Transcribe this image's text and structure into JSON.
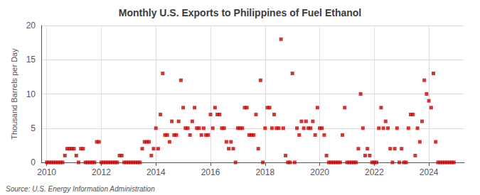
{
  "chart_data": {
    "type": "scatter",
    "title": "Monthly U.S. Exports to Philippines of Fuel Ethanol",
    "ylabel": "Thousand Barrels per Day",
    "annotations": [
      "Source: U.S. Energy Information Administration"
    ],
    "color": "#cc0000",
    "marker": "square",
    "grid": true,
    "xlim": [
      2009.8,
      2025.3
    ],
    "xticks": [
      2010,
      2012,
      2014,
      2016,
      2018,
      2020,
      2022,
      2024
    ],
    "ylim": [
      0,
      20
    ],
    "yticks": [
      0,
      5,
      10,
      15,
      20
    ],
    "x": [
      2010,
      2010.0833333333,
      2010.1666666667,
      2010.25,
      2010.3333333333,
      2010.4166666667,
      2010.5,
      2010.5833333333,
      2010.6666666667,
      2010.75,
      2010.8333333333,
      2010.9166666667,
      2011,
      2011.0833333333,
      2011.1666666667,
      2011.25,
      2011.3333333333,
      2011.4166666667,
      2011.5,
      2011.5833333333,
      2011.6666666667,
      2011.75,
      2011.8333333333,
      2011.9166666667,
      2012,
      2012.0833333333,
      2012.1666666667,
      2012.25,
      2012.3333333333,
      2012.4166666667,
      2012.5,
      2012.5833333333,
      2012.6666666667,
      2012.75,
      2012.8333333333,
      2012.9166666667,
      2013,
      2013.0833333333,
      2013.1666666667,
      2013.25,
      2013.3333333333,
      2013.4166666667,
      2013.5,
      2013.5833333333,
      2013.6666666667,
      2013.75,
      2013.8333333333,
      2013.9166666667,
      2014,
      2014.0833333333,
      2014.1666666667,
      2014.25,
      2014.3333333333,
      2014.4166666667,
      2014.5,
      2014.5833333333,
      2014.6666666667,
      2014.75,
      2014.8333333333,
      2014.9166666667,
      2015,
      2015.0833333333,
      2015.1666666667,
      2015.25,
      2015.3333333333,
      2015.4166666667,
      2015.5,
      2015.5833333333,
      2015.6666666667,
      2015.75,
      2015.8333333333,
      2015.9166666667,
      2016,
      2016.0833333333,
      2016.1666666667,
      2016.25,
      2016.3333333333,
      2016.4166666667,
      2016.5,
      2016.5833333333,
      2016.6666666667,
      2016.75,
      2016.8333333333,
      2016.9166666667,
      2017,
      2017.0833333333,
      2017.1666666667,
      2017.25,
      2017.3333333333,
      2017.4166666667,
      2017.5,
      2017.5833333333,
      2017.6666666667,
      2017.75,
      2017.8333333333,
      2017.9166666667,
      2018,
      2018.0833333333,
      2018.1666666667,
      2018.25,
      2018.3333333333,
      2018.4166666667,
      2018.5,
      2018.5833333333,
      2018.6666666667,
      2018.75,
      2018.8333333333,
      2018.9166666667,
      2019,
      2019.0833333333,
      2019.1666666667,
      2019.25,
      2019.3333333333,
      2019.4166666667,
      2019.5,
      2019.5833333333,
      2019.6666666667,
      2019.75,
      2019.8333333333,
      2019.9166666667,
      2020,
      2020.0833333333,
      2020.1666666667,
      2020.25,
      2020.3333333333,
      2020.4166666667,
      2020.5,
      2020.5833333333,
      2020.6666666667,
      2020.75,
      2020.8333333333,
      2020.9166666667,
      2021,
      2021.0833333333,
      2021.1666666667,
      2021.25,
      2021.3333333333,
      2021.4166666667,
      2021.5,
      2021.5833333333,
      2021.6666666667,
      2021.75,
      2021.8333333333,
      2021.9166666667,
      2022,
      2022.0833333333,
      2022.1666666667,
      2022.25,
      2022.3333333333,
      2022.4166666667,
      2022.5,
      2022.5833333333,
      2022.6666666667,
      2022.75,
      2022.8333333333,
      2022.9166666667,
      2023,
      2023.0833333333,
      2023.1666666667,
      2023.25,
      2023.3333333333,
      2023.4166666667,
      2023.5,
      2023.5833333333,
      2023.6666666667,
      2023.75,
      2023.8333333333,
      2023.9166666667,
      2024,
      2024.0833333333,
      2024.1666666667,
      2024.25,
      2024.3333333333,
      2024.4166666667,
      2024.5,
      2024.5833333333,
      2024.6666666667,
      2024.75,
      2024.8333333333,
      2024.9166666667
    ],
    "values": [
      0,
      0,
      0,
      0,
      0,
      0,
      0,
      0,
      1,
      2,
      2,
      2,
      2,
      1,
      0,
      2,
      2,
      0,
      0,
      0,
      0,
      0,
      3,
      3,
      0,
      0,
      0,
      0,
      0,
      0,
      0,
      0,
      1,
      1,
      0,
      0,
      0,
      0,
      0,
      0,
      0,
      0,
      2,
      3,
      3,
      3,
      1,
      2,
      5,
      2,
      7,
      13,
      4,
      4,
      3,
      6,
      4,
      4,
      6,
      12,
      8,
      5,
      5,
      4,
      6,
      8,
      5,
      5,
      4,
      5,
      4,
      4,
      7,
      5,
      8,
      7,
      7,
      5,
      5,
      3,
      2,
      3,
      2,
      0,
      5,
      5,
      5,
      8,
      8,
      4,
      4,
      4,
      7,
      2,
      12,
      0,
      5,
      8,
      8,
      5,
      7,
      5,
      5,
      18,
      5,
      1,
      0,
      0,
      13,
      0,
      5,
      4,
      6,
      5,
      6,
      5,
      5,
      6,
      4,
      8,
      5,
      5,
      4,
      1,
      0,
      0,
      0,
      0,
      0,
      0,
      4,
      8,
      0,
      0,
      0,
      0,
      0,
      2,
      10,
      5,
      1,
      2,
      1,
      0,
      0,
      0,
      5,
      8,
      5,
      6,
      5,
      2,
      0,
      2,
      5,
      0,
      2,
      0,
      0,
      5,
      7,
      7,
      1,
      5,
      3,
      6,
      12,
      10,
      9,
      8,
      13,
      3,
      0,
      0,
      0,
      0,
      0,
      0,
      0,
      0
    ]
  }
}
